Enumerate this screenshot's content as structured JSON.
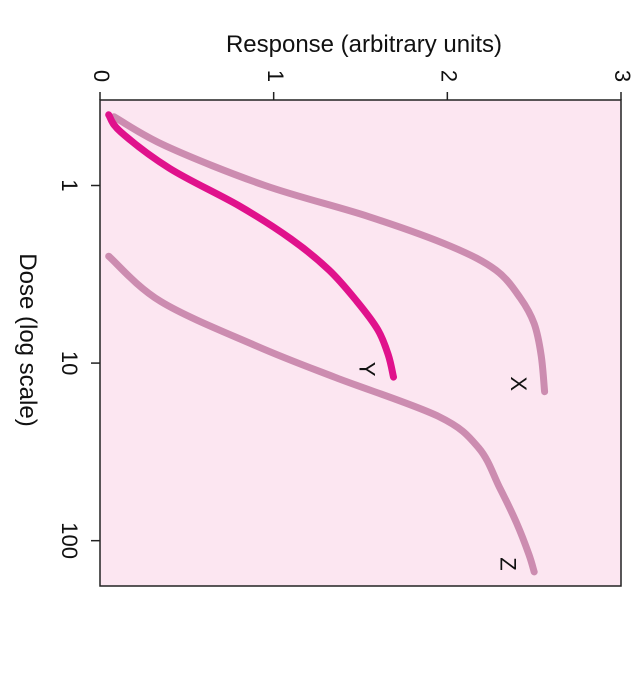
{
  "chart_data": {
    "type": "line",
    "title": "",
    "xlabel": "Dose (log scale)",
    "ylabel": "Response (arbitrary units)",
    "x_scale": "log",
    "xlim": [
      0.33,
      180
    ],
    "ylim": [
      0,
      3
    ],
    "x_ticks": [
      {
        "value": 1,
        "label": "1"
      },
      {
        "value": 10,
        "label": "10"
      },
      {
        "value": 100,
        "label": "100"
      }
    ],
    "y_ticks": [
      {
        "value": 0,
        "label": "0"
      },
      {
        "value": 1,
        "label": "1"
      },
      {
        "value": 2,
        "label": "2"
      },
      {
        "value": 3,
        "label": "3"
      }
    ],
    "grid": false,
    "plot_background": "#fce6f1",
    "series": [
      {
        "name": "X",
        "color": "#cc8cb0",
        "x": [
          0.41,
          0.6,
          1.0,
          1.5,
          2.2,
          3.0,
          4.3,
          6.0,
          9.0,
          14.5
        ],
        "y": [
          0.08,
          0.38,
          0.95,
          1.55,
          2.02,
          2.28,
          2.42,
          2.5,
          2.54,
          2.56
        ]
      },
      {
        "name": "Y",
        "color": "#e0128c",
        "x": [
          0.4,
          0.5,
          0.8,
          1.3,
          2.0,
          3.0,
          4.5,
          6.5,
          9.0,
          12.0
        ],
        "y": [
          0.05,
          0.12,
          0.4,
          0.8,
          1.1,
          1.32,
          1.48,
          1.6,
          1.66,
          1.69
        ]
      },
      {
        "name": "Z",
        "color": "#cc8cb0",
        "x": [
          2.5,
          4.5,
          8.0,
          12.0,
          20.0,
          30.0,
          50.0,
          80.0,
          120.0,
          150.0
        ],
        "y": [
          0.05,
          0.35,
          0.9,
          1.35,
          1.95,
          2.18,
          2.3,
          2.4,
          2.47,
          2.5
        ]
      }
    ]
  }
}
